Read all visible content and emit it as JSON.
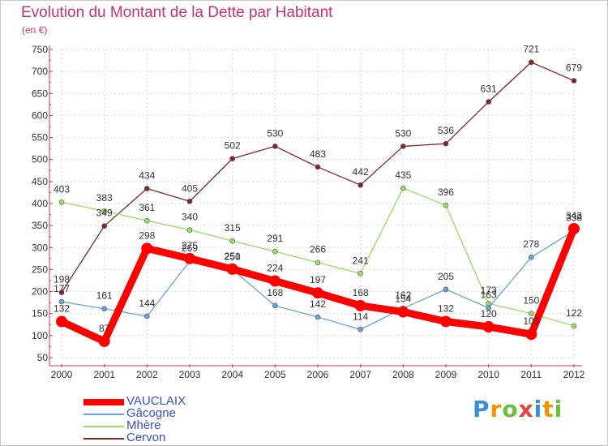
{
  "header": {
    "title": "Evolution du Montant de la Dette par Habitant",
    "unit": "(en €)"
  },
  "chart_data": {
    "type": "line",
    "title": "Evolution du Montant de la Dette par Habitant",
    "subtitle": "(en €)",
    "xlabel": "",
    "ylabel": "",
    "x": [
      "2000",
      "2001",
      "2002",
      "2003",
      "2004",
      "2005",
      "2006",
      "2007",
      "2008",
      "2009",
      "2010",
      "2011",
      "2012"
    ],
    "yticks": [
      50,
      100,
      150,
      200,
      250,
      300,
      350,
      400,
      450,
      500,
      550,
      600,
      650,
      700,
      750
    ],
    "ylim": [
      50,
      750
    ],
    "grid": true,
    "legend": "bottom-left",
    "series": [
      {
        "name": "VAUCLAIX",
        "color": "#ff0000",
        "values": [
          132,
          87,
          298,
          275,
          251,
          224,
          197,
          168,
          154,
          132,
          120,
          103,
          343
        ]
      },
      {
        "name": "Gâcogne",
        "color": "#6ba3d8",
        "values": [
          177,
          161,
          144,
          269,
          250,
          168,
          142,
          114,
          162,
          205,
          163,
          278,
          338
        ]
      },
      {
        "name": "Mhère",
        "color": "#99dd66",
        "values": [
          403,
          383,
          361,
          340,
          315,
          291,
          266,
          241,
          435,
          396,
          173,
          150,
          122
        ]
      },
      {
        "name": "Cervon",
        "color": "#7a2a2a",
        "values": [
          198,
          349,
          434,
          405,
          502,
          530,
          483,
          442,
          530,
          536,
          631,
          721,
          679
        ]
      }
    ]
  },
  "logo": {
    "letters": [
      "P",
      "r",
      "o",
      "x",
      "i",
      "t",
      "i"
    ],
    "colors": [
      "#3a8fd6",
      "#f39200",
      "#6cbf3a",
      "#e8423c",
      "#3a8fd6",
      "#f39200",
      "#6cbf3a"
    ]
  }
}
